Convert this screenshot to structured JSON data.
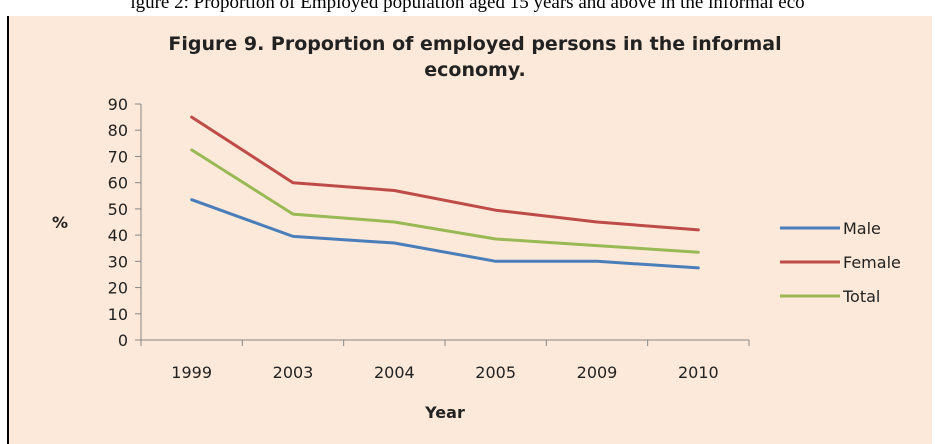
{
  "caption": "igure 2: Proportion of Employed population aged 15 years and above in the informal eco",
  "chart_data": {
    "type": "line",
    "title_line1": "Figure 9. Proportion of employed persons in the informal",
    "title_line2": "economy.",
    "xlabel": "Year",
    "ylabel": "%",
    "categories": [
      "1999",
      "2003",
      "2004",
      "2005",
      "2009",
      "2010"
    ],
    "ylim": [
      0,
      90
    ],
    "yticks": [
      0,
      10,
      20,
      30,
      40,
      50,
      60,
      70,
      80,
      90
    ],
    "grid": false,
    "legend_position": "right",
    "series": [
      {
        "name": "Male",
        "color": "#4a7ebb",
        "values": [
          53.5,
          39.5,
          37,
          30,
          30,
          27.5
        ]
      },
      {
        "name": "Female",
        "color": "#be4b48",
        "values": [
          85,
          60,
          57,
          49.5,
          45,
          42
        ]
      },
      {
        "name": "Total",
        "color": "#98b954",
        "values": [
          72.5,
          48,
          45,
          38.5,
          36,
          33.5
        ]
      }
    ]
  }
}
